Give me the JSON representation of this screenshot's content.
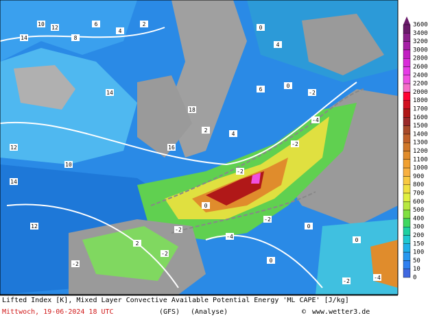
{
  "map": {
    "colorbar": {
      "levels": [
        3600,
        3400,
        3200,
        3000,
        2800,
        2600,
        2400,
        2200,
        2000,
        1800,
        1700,
        1600,
        1500,
        1400,
        1300,
        1200,
        1100,
        1000,
        900,
        800,
        700,
        600,
        500,
        400,
        300,
        200,
        150,
        100,
        50,
        10,
        0
      ],
      "colors": [
        "#6a1a6a",
        "#8a1f8a",
        "#a61fa6",
        "#c21fc2",
        "#d92cd9",
        "#e63ce6",
        "#f050e0",
        "#f56ec8",
        "#ff0033",
        "#d01020",
        "#b01818",
        "#9a2a2a",
        "#a84a2a",
        "#c0602a",
        "#d0782a",
        "#e08c2c",
        "#f0a030",
        "#f8b040",
        "#f8c840",
        "#f0e040",
        "#e0f040",
        "#b8e840",
        "#80e040",
        "#40d860",
        "#20d0a0",
        "#20c8d0",
        "#20b0e8",
        "#2898f0",
        "#3080f0",
        "#4068e0",
        "#ffffff"
      ]
    },
    "contour_labels": [
      "10",
      "12",
      "14",
      "8",
      "6",
      "4",
      "2",
      "0",
      "14",
      "12",
      "10",
      "16",
      "18",
      "2",
      "4",
      "6",
      "0",
      "-2",
      "-4",
      "-2",
      "-2",
      "0",
      "-2",
      "-4",
      "-2",
      "0",
      "2",
      "-2",
      "-2",
      "0",
      "14",
      "12",
      "4",
      "-4",
      "-2",
      "0"
    ],
    "footer": {
      "title": "Lifted Index [K], Mixed Layer Convective Available Potential Energy 'ML CAPE' [J/kg]",
      "date": "Mittwoch, 19-06-2024  18 UTC",
      "model": "(GFS)",
      "run": "(Analyse)",
      "copyright": "©",
      "site": "www.wetter3.de"
    }
  }
}
